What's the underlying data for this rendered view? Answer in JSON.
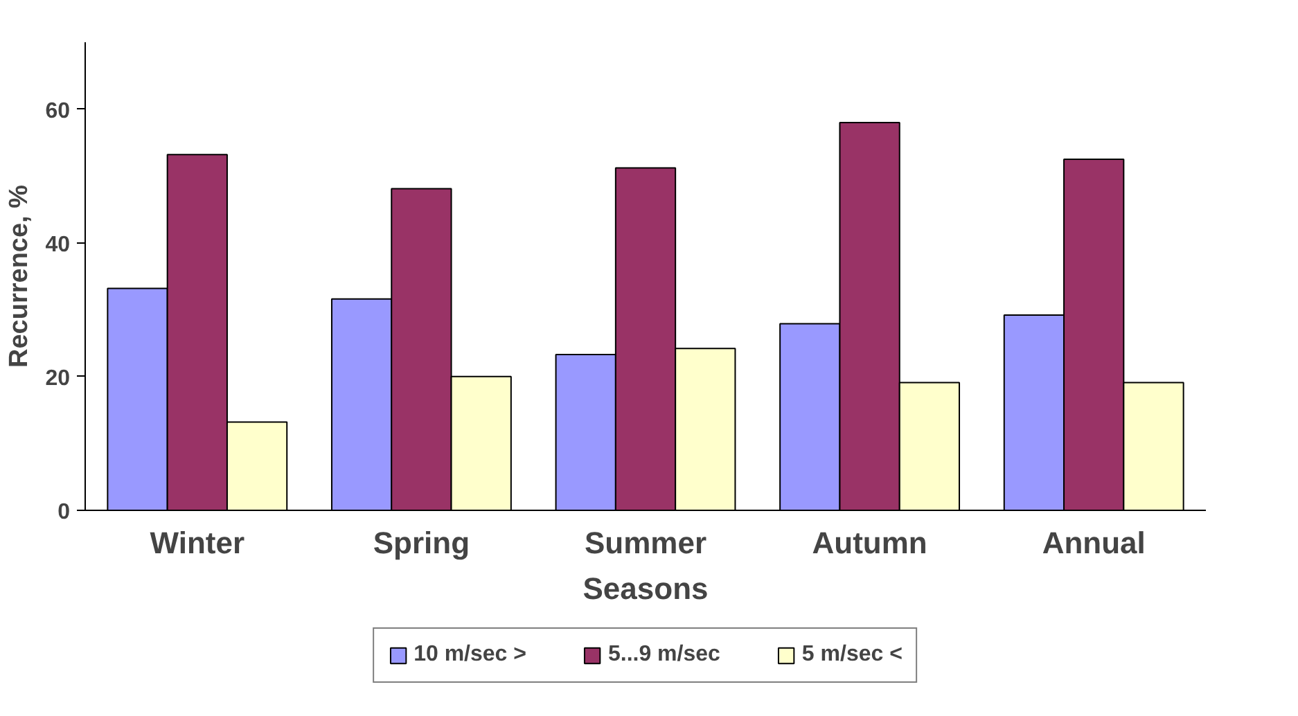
{
  "chart_data": {
    "type": "bar",
    "xlabel": "Seasons",
    "ylabel": "Recurrence, %",
    "categories": [
      "Winter",
      "Spring",
      "Summer",
      "Autumn",
      "Annual"
    ],
    "series": [
      {
        "name": "10 m/sec >",
        "color": "#9999ff",
        "values": [
          33.2,
          31.6,
          23.3,
          27.9,
          29.2
        ]
      },
      {
        "name": "5...9 m/sec",
        "color": "#993366",
        "values": [
          53.2,
          48.1,
          51.2,
          58,
          52.5
        ]
      },
      {
        "name": "5 m/sec <",
        "color": "#ffffcc",
        "values": [
          13.2,
          20,
          24.2,
          19.1,
          19.1
        ]
      }
    ],
    "ylim": [
      0,
      70
    ],
    "yticks": [
      0,
      20,
      40,
      60
    ],
    "grid": false,
    "legend": "bottom"
  }
}
